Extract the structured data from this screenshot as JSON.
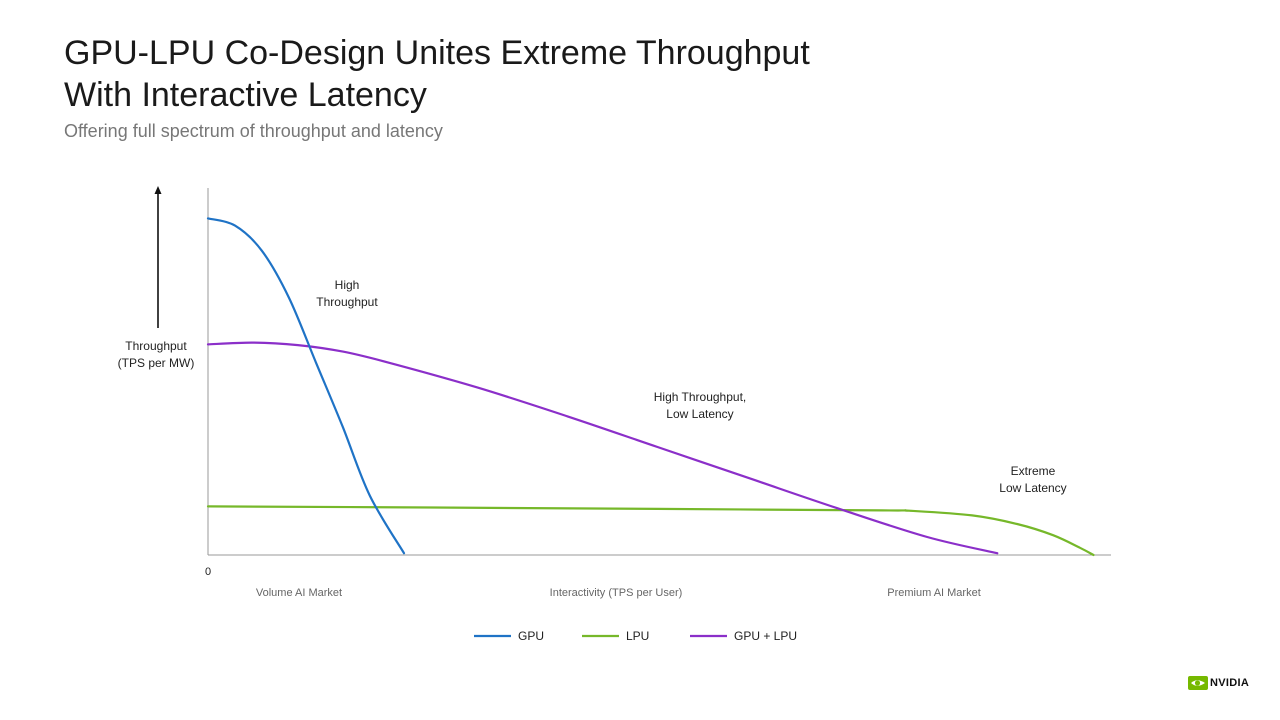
{
  "header": {
    "title": "GPU-LPU Co-Design Unites Extreme Throughput With Interactive Latency",
    "subtitle": "Offering full spectrum of throughput and latency"
  },
  "chart_data": {
    "type": "line",
    "ylabel": [
      "Throughput",
      "(TPS per MW)"
    ],
    "xlabel": "Interactivity (TPS per User)",
    "x_origin_label": "0",
    "x_region_labels": [
      "Volume AI Market",
      "Premium AI Market"
    ],
    "xlim": [
      0,
      100
    ],
    "ylim": [
      0,
      100
    ],
    "grid": false,
    "legend_position": "bottom-center",
    "series": [
      {
        "name": "GPU",
        "color": "#1f73c6",
        "x": [
          0,
          3,
          6,
          9,
          12,
          15,
          18,
          21.8
        ],
        "y": [
          93.5,
          91.5,
          84.5,
          71.5,
          53.5,
          35.5,
          16.5,
          0.5
        ]
      },
      {
        "name": "LPU",
        "color": "#76b82a",
        "x": [
          0,
          25,
          50,
          75,
          78,
          85,
          90,
          94,
          97,
          98.5
        ],
        "y": [
          13.5,
          13.2,
          12.8,
          12.4,
          12.3,
          11,
          8.6,
          5.5,
          2,
          0
        ]
      },
      {
        "name": "GPU + LPU",
        "color": "#8b2fc9",
        "x": [
          0,
          5,
          10,
          15,
          20,
          30,
          40,
          50,
          60,
          70,
          80,
          87.8
        ],
        "y": [
          58.5,
          59,
          58.3,
          56.5,
          53.5,
          46.5,
          38.5,
          30,
          21.5,
          13,
          5,
          0.5
        ]
      }
    ],
    "annotations": [
      {
        "lines": [
          "High",
          "Throughput"
        ]
      },
      {
        "lines": [
          "High Throughput,",
          "Low Latency"
        ]
      },
      {
        "lines": [
          "Extreme",
          "Low Latency"
        ]
      }
    ]
  },
  "branding": {
    "logo_text": "NVIDIA",
    "logo_color": "#76b900"
  }
}
